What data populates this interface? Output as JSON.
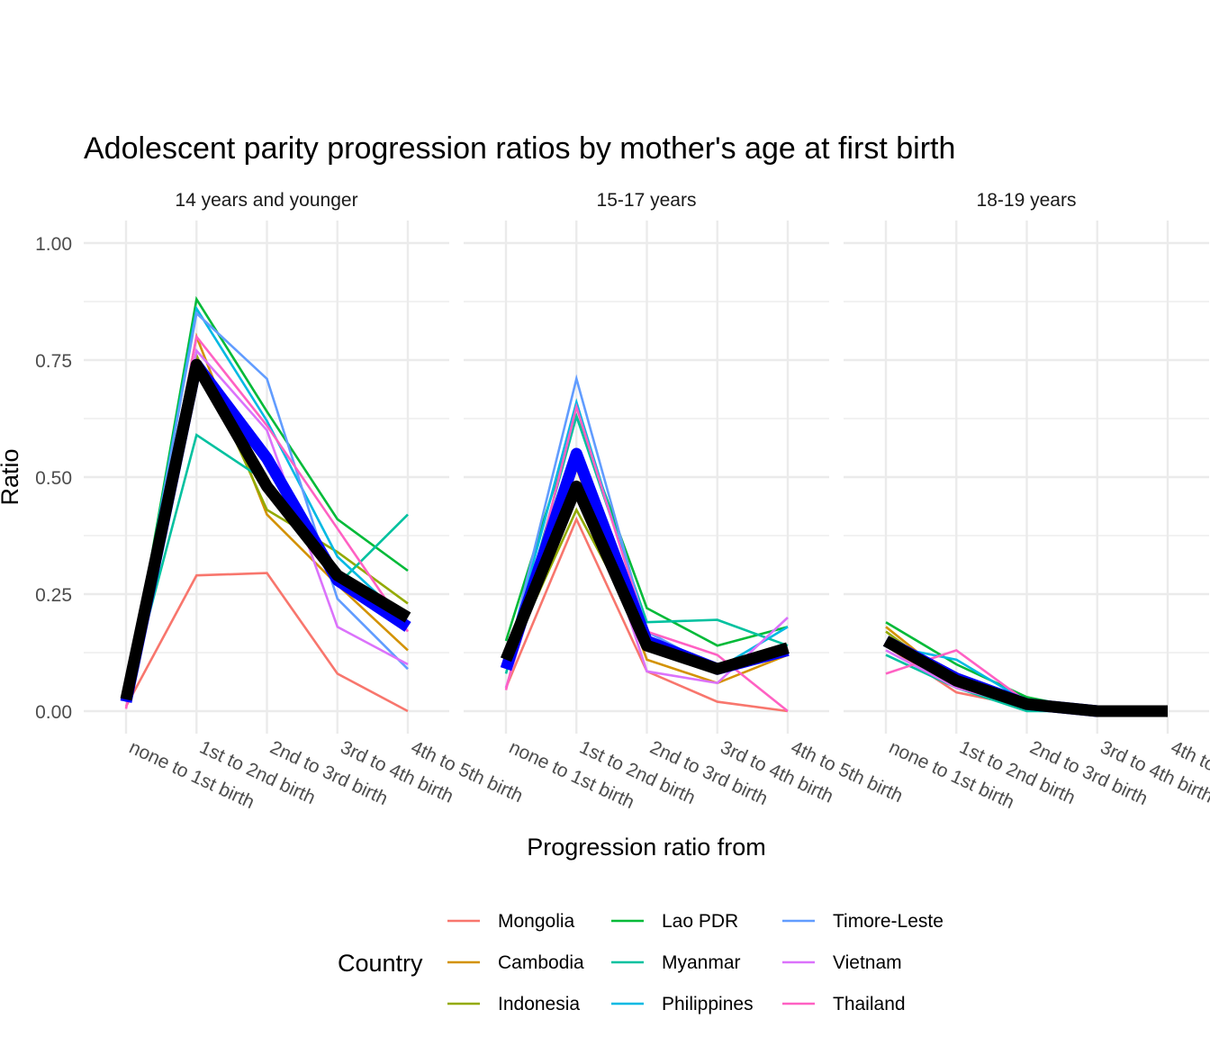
{
  "chart_data": {
    "type": "line",
    "title": "Adolescent parity progression ratios by mother's age at first birth",
    "xlabel": "Progression ratio from",
    "ylabel": "Ratio",
    "ylim": [
      0,
      1
    ],
    "yticks": [
      0,
      0.25,
      0.5,
      0.75,
      1
    ],
    "ytick_labels": [
      "0.00",
      "0.25",
      "0.50",
      "0.75",
      "1.00"
    ],
    "grid": true,
    "categories": [
      "none to 1st birth",
      "1st to 2nd birth",
      "2nd to 3rd birth",
      "3rd to 4th birth",
      "4th to 5th birth"
    ],
    "legend": {
      "title": "Country",
      "placement": "bottom",
      "entries": [
        "Mongolia",
        "Cambodia",
        "Indonesia",
        "Lao PDR",
        "Myanmar",
        "Philippines",
        "Timore-Leste",
        "Vietnam",
        "Thailand"
      ]
    },
    "colors": {
      "Mongolia": "#F8766D",
      "Cambodia": "#D39200",
      "Indonesia": "#93AA00",
      "Lao PDR": "#00BA38",
      "Myanmar": "#00C19F",
      "Philippines": "#00B9E3",
      "Timore-Leste": "#619CFF",
      "Vietnam": "#DB72FB",
      "Thailand": "#FF61C3",
      "mean_blue": "#0000FF",
      "mean_black": "#000000"
    },
    "panels": [
      {
        "facet": "14 years and younger",
        "series": [
          {
            "name": "Mongolia",
            "values": [
              0.01,
              0.29,
              0.295,
              0.08,
              0.0
            ]
          },
          {
            "name": "Cambodia",
            "values": [
              0.02,
              0.8,
              0.42,
              0.27,
              0.13
            ]
          },
          {
            "name": "Indonesia",
            "values": [
              0.02,
              0.76,
              0.43,
              0.34,
              0.23
            ]
          },
          {
            "name": "Lao PDR",
            "values": [
              0.02,
              0.88,
              0.64,
              0.41,
              0.3
            ]
          },
          {
            "name": "Myanmar",
            "values": [
              0.02,
              0.59,
              0.49,
              0.27,
              0.42
            ]
          },
          {
            "name": "Philippines",
            "values": [
              0.02,
              0.86,
              0.62,
              0.33,
              0.19
            ]
          },
          {
            "name": "Timore-Leste",
            "values": [
              0.02,
              0.85,
              0.71,
              0.24,
              0.09
            ]
          },
          {
            "name": "Vietnam",
            "values": [
              0.02,
              0.77,
              0.6,
              0.18,
              0.1
            ]
          },
          {
            "name": "Thailand",
            "values": [
              0.005,
              0.8,
              0.61,
              0.39,
              0.17
            ]
          },
          {
            "name": "mean_blue",
            "values": [
              0.02,
              0.74,
              0.54,
              0.28,
              0.18
            ]
          },
          {
            "name": "mean_black",
            "values": [
              0.025,
              0.74,
              0.48,
              0.29,
              0.2
            ]
          }
        ]
      },
      {
        "facet": "15-17 years",
        "series": [
          {
            "name": "Mongolia",
            "values": [
              0.05,
              0.41,
              0.085,
              0.02,
              0.0
            ]
          },
          {
            "name": "Cambodia",
            "values": [
              0.1,
              0.52,
              0.11,
              0.06,
              0.12
            ]
          },
          {
            "name": "Indonesia",
            "values": [
              0.1,
              0.43,
              0.15,
              0.09,
              0.13
            ]
          },
          {
            "name": "Lao PDR",
            "values": [
              0.15,
              0.63,
              0.22,
              0.14,
              0.18
            ]
          },
          {
            "name": "Myanmar",
            "values": [
              0.08,
              0.63,
              0.19,
              0.195,
              0.14
            ]
          },
          {
            "name": "Philippines",
            "values": [
              0.1,
              0.66,
              0.17,
              0.09,
              0.18
            ]
          },
          {
            "name": "Timore-Leste",
            "values": [
              0.1,
              0.71,
              0.17,
              0.09,
              0.13
            ]
          },
          {
            "name": "Vietnam",
            "values": [
              0.05,
              0.54,
              0.085,
              0.06,
              0.2
            ]
          },
          {
            "name": "Thailand",
            "values": [
              0.045,
              0.65,
              0.17,
              0.12,
              0.0
            ]
          },
          {
            "name": "mean_blue",
            "values": [
              0.09,
              0.55,
              0.15,
              0.09,
              0.13
            ]
          },
          {
            "name": "mean_black",
            "values": [
              0.11,
              0.48,
              0.14,
              0.09,
              0.135
            ]
          }
        ]
      },
      {
        "facet": "18-19 years",
        "series": [
          {
            "name": "Mongolia",
            "values": [
              0.14,
              0.04,
              0.01,
              0.0,
              0.0
            ]
          },
          {
            "name": "Cambodia",
            "values": [
              0.18,
              0.06,
              0.01,
              0.0,
              0.0
            ]
          },
          {
            "name": "Indonesia",
            "values": [
              0.17,
              0.06,
              0.01,
              0.0,
              0.0
            ]
          },
          {
            "name": "Lao PDR",
            "values": [
              0.19,
              0.1,
              0.03,
              0.0,
              0.0
            ]
          },
          {
            "name": "Myanmar",
            "values": [
              0.12,
              0.05,
              0.0,
              0.0,
              0.0
            ]
          },
          {
            "name": "Philippines",
            "values": [
              0.14,
              0.11,
              0.02,
              0.0,
              0.0
            ]
          },
          {
            "name": "Timore-Leste",
            "values": [
              0.15,
              0.08,
              0.01,
              0.0,
              0.0
            ]
          },
          {
            "name": "Vietnam",
            "values": [
              0.13,
              0.05,
              0.01,
              0.0,
              0.0
            ]
          },
          {
            "name": "Thailand",
            "values": [
              0.08,
              0.13,
              0.02,
              0.0,
              0.0
            ]
          },
          {
            "name": "mean_blue",
            "values": [
              0.15,
              0.07,
              0.015,
              0.0,
              0.0
            ]
          },
          {
            "name": "mean_black",
            "values": [
              0.15,
              0.065,
              0.015,
              0.0,
              0.0
            ]
          }
        ]
      }
    ]
  }
}
